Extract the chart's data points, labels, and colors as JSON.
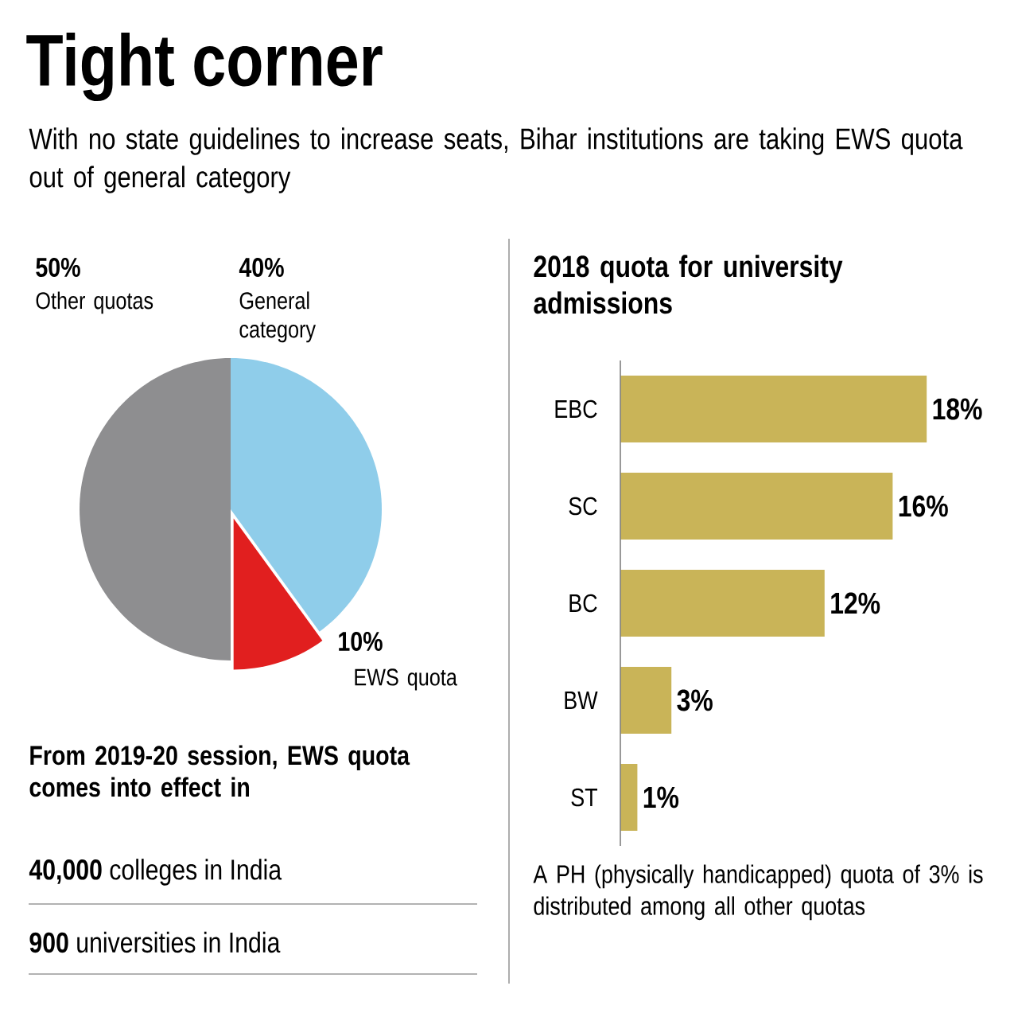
{
  "chart_data": [
    {
      "type": "pie",
      "title": "Tight corner",
      "subtitle": "With no state guidelines to increase seats, Bihar institutions are taking EWS quota out of general category",
      "categories": [
        "Other quotas",
        "General category",
        "EWS quota"
      ],
      "values": [
        50,
        40,
        10
      ],
      "value_labels": [
        "50%",
        "40%",
        "10%"
      ],
      "colors": [
        "#8e8e90",
        "#8fcdea",
        "#e11f1f"
      ]
    },
    {
      "type": "other",
      "title": "From 2019-20 session, EWS quota comes into effect in",
      "annotations": [
        "**40,000** colleges in India",
        "**900** universities in India"
      ]
    },
    {
      "type": "bar",
      "orientation": "horizontal",
      "title": "2018 quota for university admissions",
      "categories": [
        "EBC",
        "SC",
        "BC",
        "BW",
        "ST"
      ],
      "values": [
        18,
        16,
        12,
        3,
        1
      ],
      "value_labels": [
        "18%",
        "16%",
        "12%",
        "3%",
        "1%"
      ],
      "color": "#c9b458",
      "annotations": [
        "A PH (physically handicapped) quota of 3% is distributed among all other quotas"
      ]
    }
  ]
}
